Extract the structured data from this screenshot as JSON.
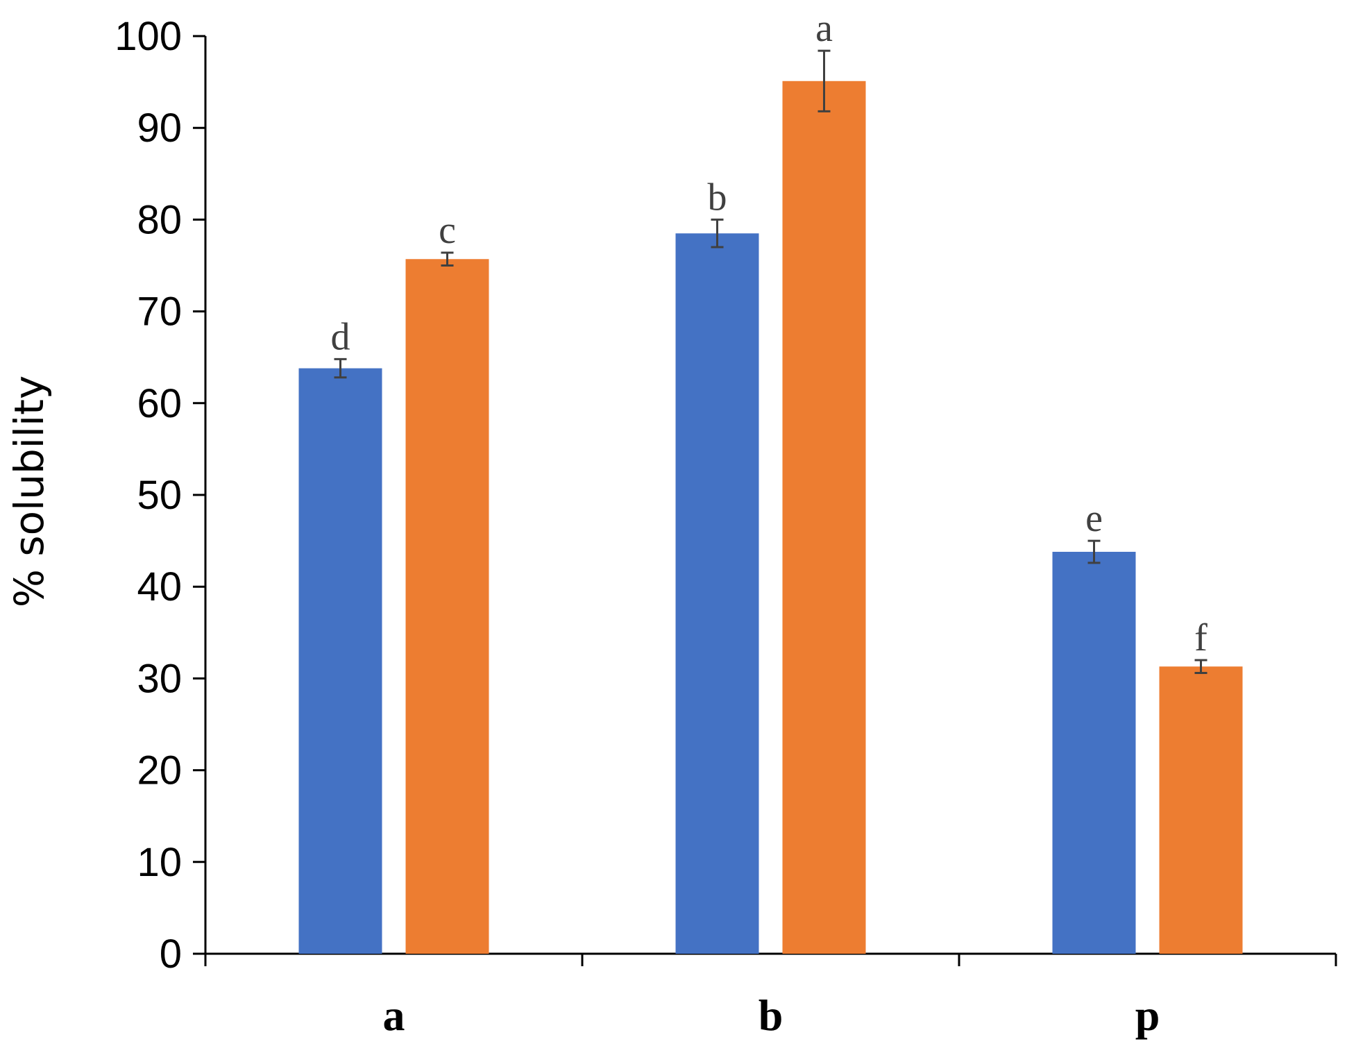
{
  "chart_data": {
    "type": "bar",
    "title": "",
    "xlabel": "",
    "ylabel": "% solubility",
    "ylim": [
      0,
      100
    ],
    "yticks": [
      "0",
      "10",
      "20",
      "30",
      "40",
      "50",
      "60",
      "70",
      "80",
      "90",
      "100"
    ],
    "categories": [
      "a",
      "b",
      "p"
    ],
    "grid": false,
    "legend": "none",
    "series": [
      {
        "color": "#4472C4",
        "values": [
          63.8,
          78.5,
          43.8
        ],
        "errors": [
          1.0,
          1.5,
          1.2
        ],
        "letters": [
          "d",
          "b",
          "e"
        ]
      },
      {
        "color": "#ED7D31",
        "values": [
          75.7,
          95.1,
          31.3
        ],
        "errors": [
          0.7,
          3.3,
          0.7
        ],
        "letters": [
          "c",
          "a",
          "f"
        ]
      }
    ]
  }
}
